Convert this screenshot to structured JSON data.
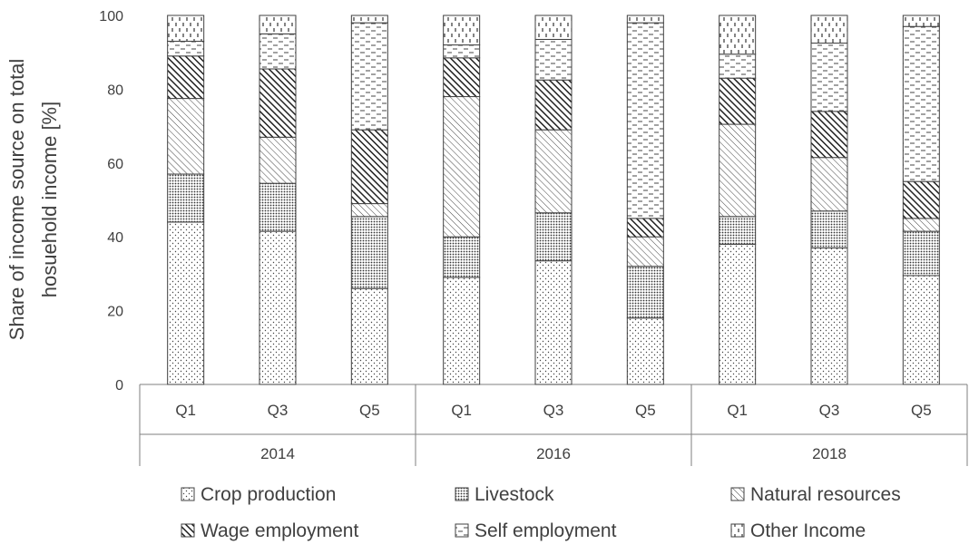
{
  "chart_data": {
    "type": "bar",
    "stacked": true,
    "ylabel_lines": [
      "Share of income source on total",
      "hosuehold income [%]"
    ],
    "ylim": [
      0,
      100
    ],
    "yticks": [
      0,
      20,
      40,
      60,
      80,
      100
    ],
    "categories": [
      {
        "group": "2014",
        "label": "Q1"
      },
      {
        "group": "2014",
        "label": "Q3"
      },
      {
        "group": "2014",
        "label": "Q5"
      },
      {
        "group": "2016",
        "label": "Q1"
      },
      {
        "group": "2016",
        "label": "Q3"
      },
      {
        "group": "2016",
        "label": "Q5"
      },
      {
        "group": "2018",
        "label": "Q1"
      },
      {
        "group": "2018",
        "label": "Q3"
      },
      {
        "group": "2018",
        "label": "Q5"
      }
    ],
    "groups": [
      "2014",
      "2016",
      "2018"
    ],
    "series": [
      {
        "name": "Crop production",
        "pattern": "dots",
        "values": [
          44,
          41.5,
          26,
          29,
          33.5,
          18,
          38,
          37,
          29.5
        ]
      },
      {
        "name": "Livestock",
        "pattern": "dense-dots",
        "values": [
          13,
          13,
          19.5,
          11,
          13,
          14,
          7.5,
          10,
          12
        ]
      },
      {
        "name": "Natural resources",
        "pattern": "diagonal",
        "values": [
          20.5,
          12.5,
          3.5,
          38,
          22.5,
          8,
          25,
          14.5,
          3.5
        ]
      },
      {
        "name": "Wage employment",
        "pattern": "dense-diagonal",
        "values": [
          11.5,
          18.5,
          20,
          10.5,
          13.5,
          5,
          12.5,
          12.5,
          10
        ]
      },
      {
        "name": "Self employment",
        "pattern": "dashes",
        "values": [
          4,
          9.5,
          29,
          3.5,
          11,
          53,
          6.5,
          18.5,
          42
        ]
      },
      {
        "name": "Other Income",
        "pattern": "vertical-dashes",
        "values": [
          7,
          5,
          2,
          8,
          6.5,
          2,
          10.5,
          7.5,
          3
        ]
      }
    ],
    "legend_position": "bottom",
    "grid": false
  }
}
